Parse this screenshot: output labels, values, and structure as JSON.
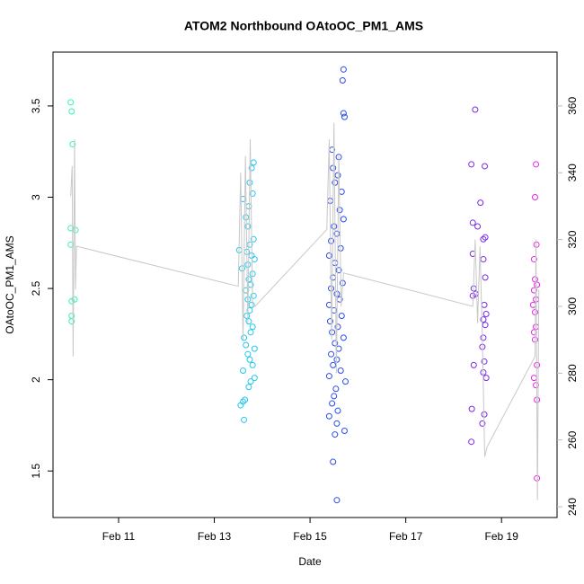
{
  "chart_data": {
    "type": "scatter",
    "title": "ATOM2 Northbound OAtoOC_PM1_AMS",
    "x_label": "Date",
    "y_label": "OAtoOC_PM1_AMS",
    "xlim": [
      9.63,
      20.16
    ],
    "xticks": [
      {
        "value": 11,
        "label": "Feb 11"
      },
      {
        "value": 13,
        "label": "Feb 13"
      },
      {
        "value": 15,
        "label": "Feb 15"
      },
      {
        "value": 17,
        "label": "Feb 17"
      },
      {
        "value": 19,
        "label": "Feb 19"
      }
    ],
    "ylim": [
      1.245,
      3.795
    ],
    "yticks": [
      1.5,
      2.0,
      2.5,
      3.0,
      3.5
    ],
    "y2lim": [
      236.8,
      376.1
    ],
    "y2ticks": [
      240,
      260,
      280,
      300,
      320,
      340,
      360
    ],
    "series": [
      {
        "color": "#33f5b5",
        "x": [
          10.0,
          10.02,
          10.04,
          10.0,
          10.1,
          10.0,
          10.08,
          10.02,
          10.02,
          10.02
        ],
        "values": [
          3.52,
          3.47,
          3.29,
          2.83,
          2.82,
          2.74,
          2.44,
          2.43,
          2.35,
          2.32
        ]
      },
      {
        "color": "#22c8ee",
        "x": [
          13.82,
          13.78,
          13.74,
          13.8,
          13.6,
          13.72,
          13.66,
          13.7,
          13.82,
          13.74,
          13.52,
          13.68,
          13.78,
          13.84,
          13.7,
          13.58,
          13.8,
          13.72,
          13.76,
          13.66,
          13.82,
          13.7,
          13.78,
          13.74,
          13.68,
          13.72,
          13.8,
          13.76,
          13.62,
          13.66,
          13.84,
          13.7,
          13.74,
          13.8,
          13.6,
          13.84,
          13.76,
          13.72,
          13.64,
          13.6,
          13.55,
          13.62
        ],
        "values": [
          3.19,
          3.16,
          3.08,
          3.02,
          2.99,
          2.95,
          2.89,
          2.84,
          2.77,
          2.74,
          2.71,
          2.7,
          2.68,
          2.66,
          2.63,
          2.61,
          2.58,
          2.55,
          2.52,
          2.49,
          2.46,
          2.44,
          2.41,
          2.38,
          2.35,
          2.32,
          2.29,
          2.26,
          2.23,
          2.19,
          2.17,
          2.14,
          2.11,
          2.08,
          2.05,
          2.01,
          1.99,
          1.96,
          1.89,
          1.88,
          1.86,
          1.78
        ]
      },
      {
        "color": "#2a4cee",
        "x": [
          15.7,
          15.68,
          15.7,
          15.72,
          15.46,
          15.6,
          15.48,
          15.58,
          15.52,
          15.66,
          15.42,
          15.62,
          15.7,
          15.5,
          15.56,
          15.44,
          15.64,
          15.4,
          15.52,
          15.6,
          15.48,
          15.68,
          15.44,
          15.56,
          15.62,
          15.4,
          15.5,
          15.66,
          15.42,
          15.58,
          15.46,
          15.7,
          15.52,
          15.6,
          15.44,
          15.56,
          15.48,
          15.64,
          15.4,
          15.74,
          15.54,
          15.5,
          15.46,
          15.58,
          15.4,
          15.56,
          15.72,
          15.52,
          15.48,
          15.56
        ],
        "values": [
          3.7,
          3.64,
          3.46,
          3.44,
          3.26,
          3.22,
          3.16,
          3.12,
          3.08,
          3.03,
          2.98,
          2.93,
          2.88,
          2.84,
          2.8,
          2.76,
          2.72,
          2.68,
          2.64,
          2.6,
          2.56,
          2.53,
          2.5,
          2.47,
          2.44,
          2.41,
          2.38,
          2.35,
          2.32,
          2.29,
          2.26,
          2.23,
          2.2,
          2.17,
          2.14,
          2.11,
          2.08,
          2.05,
          2.02,
          1.99,
          1.95,
          1.91,
          1.87,
          1.83,
          1.8,
          1.76,
          1.72,
          1.7,
          1.55,
          1.34
        ]
      },
      {
        "color": "#7a2ae6",
        "x": [
          18.45,
          18.37,
          18.65,
          18.56,
          18.4,
          18.5,
          18.66,
          18.62,
          18.4,
          18.62,
          18.66,
          18.42,
          18.46,
          18.4,
          18.64,
          18.68,
          18.62,
          18.66,
          18.62,
          18.6,
          18.64,
          18.42,
          18.62,
          18.68,
          18.38,
          18.64,
          18.6,
          18.37
        ],
        "values": [
          3.48,
          3.18,
          3.17,
          2.97,
          2.86,
          2.84,
          2.78,
          2.77,
          2.69,
          2.66,
          2.56,
          2.5,
          2.47,
          2.46,
          2.41,
          2.36,
          2.33,
          2.3,
          2.23,
          2.18,
          2.1,
          2.08,
          2.04,
          2.01,
          1.84,
          1.81,
          1.76,
          1.66
        ]
      },
      {
        "color": "#e822e8",
        "x": [
          19.72,
          19.7,
          19.73,
          19.68,
          19.7,
          19.74,
          19.68,
          19.72,
          19.66,
          19.7,
          19.72,
          19.68,
          19.7,
          19.74,
          19.68,
          19.72,
          19.74,
          19.74
        ],
        "values": [
          3.18,
          3.0,
          2.74,
          2.66,
          2.55,
          2.52,
          2.49,
          2.44,
          2.41,
          2.37,
          2.29,
          2.26,
          2.22,
          2.08,
          2.01,
          1.97,
          1.89,
          1.46
        ]
      },
      {
        "type": "line",
        "axis": "y2",
        "color": "#c8c8c8",
        "x": [
          10.0,
          10.03,
          10.05,
          10.08,
          10.1,
          10.12,
          13.5,
          13.55,
          13.6,
          13.65,
          13.7,
          13.75,
          13.8,
          13.85,
          15.35,
          15.4,
          15.45,
          15.5,
          15.55,
          15.6,
          15.65,
          15.7,
          18.4,
          18.45,
          18.5,
          18.55,
          18.6,
          18.65,
          18.7,
          19.7,
          19.72,
          19.75,
          19.78
        ],
        "values": [
          333,
          342,
          285,
          350,
          305,
          318,
          306,
          340,
          290,
          345,
          295,
          350,
          300,
          300,
          323,
          350,
          290,
          355,
          280,
          345,
          300,
          310,
          300,
          320,
          295,
          318,
          290,
          255,
          258,
          285,
          320,
          242,
          305
        ]
      }
    ]
  }
}
